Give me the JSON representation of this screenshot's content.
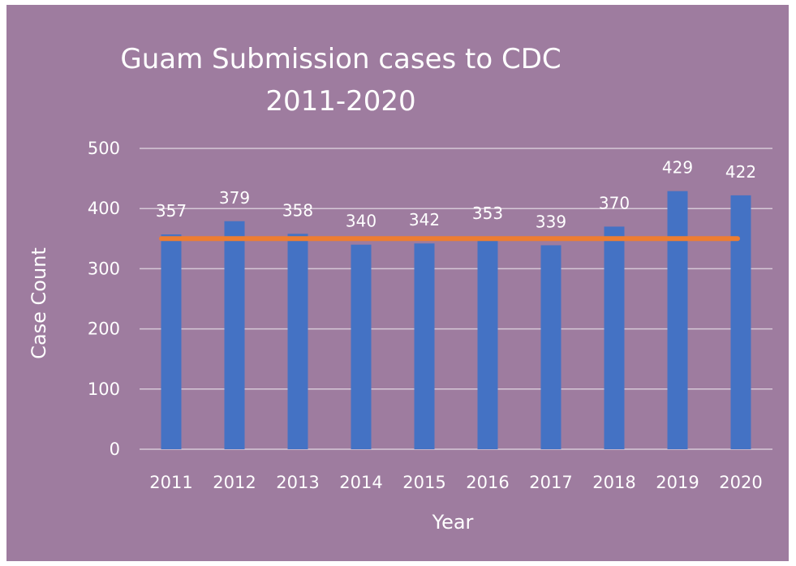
{
  "chart_data": {
    "type": "bar",
    "title_lines": [
      "Guam Submission cases to CDC",
      "2011-2020"
    ],
    "xlabel": "Year",
    "ylabel": "Case Count",
    "categories": [
      "2011",
      "2012",
      "2013",
      "2014",
      "2015",
      "2016",
      "2017",
      "2018",
      "2019",
      "2020"
    ],
    "values": [
      357,
      379,
      358,
      340,
      342,
      353,
      339,
      370,
      429,
      422
    ],
    "data_labels": [
      "357",
      "379",
      "358",
      "340",
      "342",
      "353",
      "339",
      "370",
      "429",
      "422"
    ],
    "reference_line_value": 350,
    "ylim": [
      0,
      500
    ],
    "yticks": [
      0,
      100,
      200,
      300,
      400,
      500
    ],
    "ytick_labels": [
      "0",
      "100",
      "200",
      "300",
      "400",
      "500"
    ],
    "grid": true,
    "legend": "none",
    "colors": {
      "background": "#9e7c9f",
      "bar": "#4472c4",
      "reference_line": "#ed7d31",
      "gridline": "#d6c8d7",
      "text": "#ffffff"
    }
  }
}
